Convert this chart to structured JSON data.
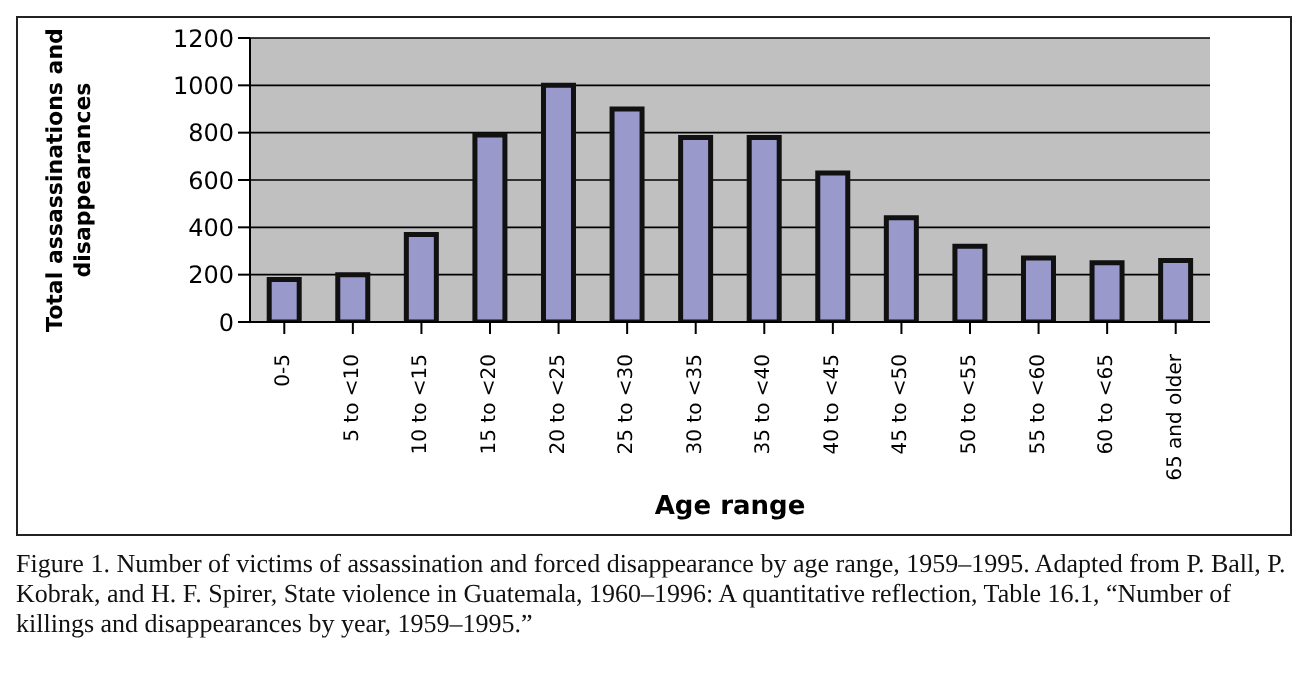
{
  "chart_data": {
    "type": "bar",
    "categories": [
      "0-5",
      "5 to <10",
      "10 to <15",
      "15 to <20",
      "20 to <25",
      "25 to <30",
      "30 to <35",
      "35 to <40",
      "40 to <45",
      "45 to <50",
      "50 to <55",
      "55 to <60",
      "60 to <65",
      "65 and older"
    ],
    "values": [
      180,
      200,
      370,
      790,
      1000,
      900,
      780,
      780,
      630,
      440,
      320,
      270,
      250,
      260
    ],
    "color": "#9999cc",
    "xlabel": "Age range",
    "ylabel": "Total assassinations and disappearances",
    "ylim": [
      0,
      1200
    ],
    "yticks": [
      0,
      200,
      400,
      600,
      800,
      1000,
      1200
    ],
    "grid": "y",
    "annotations": [
      "Figure 1. Number of victims of assassination and forced disappearance by age range, 1959–1995. Adapted from P. Ball, P. Kobrak, and H. F. Spirer, State violence in Guatemala, 1960–1996: A quantitative reflection, Table 16.1, “Number of killings and disappearances by year, 1959–1995.”"
    ]
  }
}
